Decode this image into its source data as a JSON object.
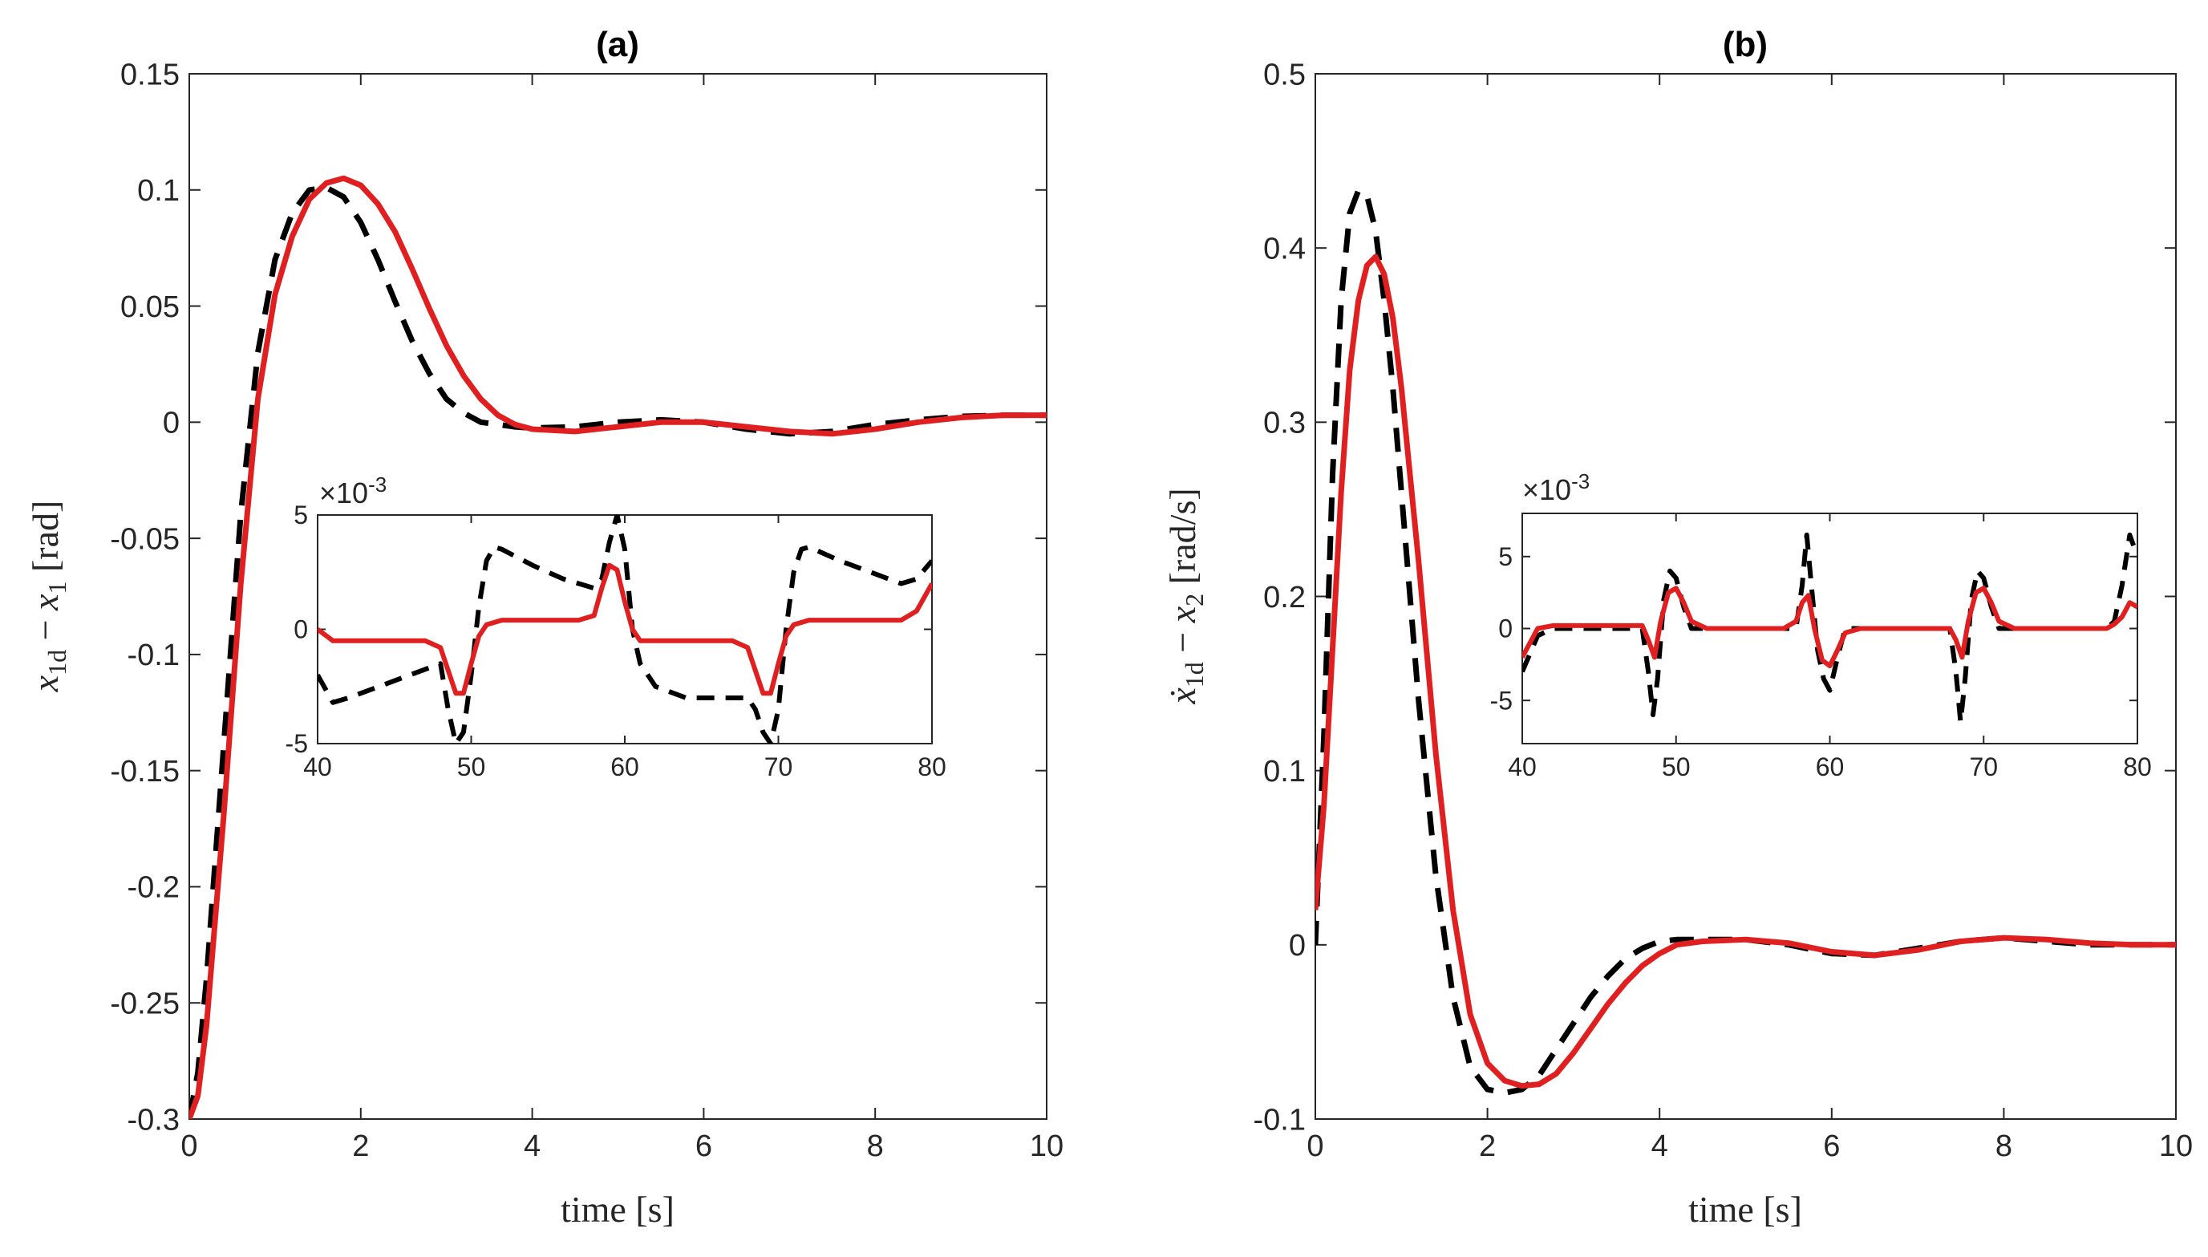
{
  "chart_data": [
    {
      "type": "line",
      "title": "(a)",
      "xlabel": "time [s]",
      "ylabel": "x_{1d} − x_1 [rad]",
      "ylabel_parts": {
        "var": "x",
        "sub1": "1d",
        "minus": " − ",
        "var2": "x",
        "sub2": "1",
        "unit": " [rad]"
      },
      "xlim": [
        0,
        10
      ],
      "ylim": [
        -0.3,
        0.15
      ],
      "xticks": [
        0,
        2,
        4,
        6,
        8,
        10
      ],
      "xtick_labels": [
        "0",
        "2",
        "4",
        "6",
        "8",
        "10"
      ],
      "yticks": [
        -0.3,
        -0.25,
        -0.2,
        -0.15,
        -0.1,
        -0.05,
        0,
        0.05,
        0.1,
        0.15
      ],
      "ytick_labels": [
        "-0.3",
        "-0.25",
        "-0.2",
        "-0.15",
        "-0.1",
        "-0.05",
        "0",
        "0.05",
        "0.1",
        "0.15"
      ],
      "grid": false,
      "series": [
        {
          "name": "dashed",
          "color": "#000000",
          "style": "dashed",
          "x": [
            0,
            0.1,
            0.2,
            0.4,
            0.6,
            0.8,
            1.0,
            1.2,
            1.4,
            1.6,
            1.8,
            2.0,
            2.2,
            2.4,
            2.6,
            2.8,
            3.0,
            3.2,
            3.4,
            3.6,
            3.8,
            4.0,
            4.5,
            5.0,
            5.5,
            6.0,
            6.5,
            7.0,
            7.5,
            8.0,
            8.5,
            9.0,
            9.5,
            10.0
          ],
          "y": [
            -0.3,
            -0.28,
            -0.24,
            -0.14,
            -0.04,
            0.03,
            0.07,
            0.09,
            0.1,
            0.101,
            0.097,
            0.086,
            0.07,
            0.052,
            0.035,
            0.021,
            0.01,
            0.004,
            0.0,
            -0.001,
            -0.002,
            -0.0025,
            -0.002,
            0.0,
            0.001,
            0.0,
            -0.003,
            -0.005,
            -0.004,
            -0.001,
            0.001,
            0.0025,
            0.003,
            0.003
          ]
        },
        {
          "name": "solid",
          "color": "#e02020",
          "style": "solid",
          "x": [
            0,
            0.1,
            0.2,
            0.4,
            0.6,
            0.8,
            1.0,
            1.2,
            1.4,
            1.6,
            1.8,
            2.0,
            2.2,
            2.4,
            2.6,
            2.8,
            3.0,
            3.2,
            3.4,
            3.6,
            3.8,
            4.0,
            4.5,
            5.0,
            5.5,
            6.0,
            6.5,
            7.0,
            7.5,
            8.0,
            8.5,
            9.0,
            9.5,
            10.0
          ],
          "y": [
            -0.3,
            -0.29,
            -0.26,
            -0.17,
            -0.07,
            0.01,
            0.055,
            0.08,
            0.096,
            0.103,
            0.105,
            0.102,
            0.094,
            0.082,
            0.066,
            0.049,
            0.033,
            0.02,
            0.01,
            0.003,
            -0.001,
            -0.003,
            -0.004,
            -0.002,
            0.0,
            0.0,
            -0.002,
            -0.004,
            -0.005,
            -0.003,
            0.0,
            0.002,
            0.003,
            0.003
          ]
        }
      ],
      "inset": {
        "xlim": [
          40,
          80
        ],
        "ylim": [
          -5,
          5
        ],
        "xticks": [
          40,
          50,
          60,
          70,
          80
        ],
        "xtick_labels": [
          "40",
          "50",
          "60",
          "70",
          "80"
        ],
        "yticks": [
          -5,
          0,
          5
        ],
        "ytick_labels": [
          "-5",
          "0",
          "5"
        ],
        "scale_label": "×10",
        "scale_exponent": "-3",
        "series": [
          {
            "name": "dashed",
            "color": "#000000",
            "style": "dashed",
            "x": [
              40,
              41,
              42,
              44,
              46,
              48,
              48.5,
              49,
              49.5,
              50,
              50.5,
              51,
              51.5,
              52,
              54,
              56,
              58,
              58.5,
              59,
              59.5,
              60,
              60.5,
              61,
              62,
              64,
              66,
              68,
              68.5,
              69,
              69.5,
              70,
              70.5,
              71,
              71.5,
              72,
              74,
              76,
              78,
              79,
              80
            ],
            "y": [
              -2,
              -3.2,
              -3.0,
              -2.5,
              -2.0,
              -1.5,
              -3.5,
              -5.0,
              -4.5,
              -2.0,
              1.0,
              3.0,
              3.6,
              3.5,
              2.8,
              2.2,
              1.8,
              2.2,
              3.8,
              5.0,
              3.5,
              0.0,
              -1.5,
              -2.5,
              -3.0,
              -3.0,
              -3.0,
              -3.5,
              -4.5,
              -5.0,
              -3.5,
              0.0,
              2.5,
              3.5,
              3.6,
              3.0,
              2.5,
              2.0,
              2.2,
              3.0
            ]
          },
          {
            "name": "solid",
            "color": "#e02020",
            "style": "solid",
            "x": [
              40,
              41,
              42,
              44,
              46,
              47,
              48,
              48.5,
              49,
              49.5,
              50,
              50.5,
              51,
              52,
              54,
              56,
              57,
              58,
              58.5,
              59,
              59.5,
              60,
              60.5,
              61,
              62,
              64,
              66,
              67,
              68,
              68.5,
              69,
              69.5,
              70,
              70.5,
              71,
              72,
              74,
              76,
              78,
              79,
              80
            ],
            "y": [
              0,
              -0.5,
              -0.5,
              -0.5,
              -0.5,
              -0.5,
              -0.8,
              -1.8,
              -2.8,
              -2.8,
              -1.5,
              -0.3,
              0.2,
              0.4,
              0.4,
              0.4,
              0.4,
              0.6,
              1.8,
              2.8,
              2.6,
              1.2,
              0.0,
              -0.5,
              -0.5,
              -0.5,
              -0.5,
              -0.5,
              -0.8,
              -1.8,
              -2.8,
              -2.8,
              -1.5,
              -0.3,
              0.2,
              0.4,
              0.4,
              0.4,
              0.4,
              0.8,
              2.0
            ]
          }
        ]
      }
    },
    {
      "type": "line",
      "title": "(b)",
      "xlabel": "time [s]",
      "ylabel": "ẋ_{1d} − x_2 [rad/s]",
      "ylabel_parts": {
        "var": "ẋ",
        "sub1": "1d",
        "minus": " − ",
        "var2": "x",
        "sub2": "2",
        "unit": " [rad/s]"
      },
      "xlim": [
        0,
        10
      ],
      "ylim": [
        -0.1,
        0.5
      ],
      "xticks": [
        0,
        2,
        4,
        6,
        8,
        10
      ],
      "xtick_labels": [
        "0",
        "2",
        "4",
        "6",
        "8",
        "10"
      ],
      "yticks": [
        -0.1,
        0,
        0.1,
        0.2,
        0.3,
        0.4,
        0.5
      ],
      "ytick_labels": [
        "-0.1",
        "0",
        "0.1",
        "0.2",
        "0.3",
        "0.4",
        "0.5"
      ],
      "grid": false,
      "series": [
        {
          "name": "dashed",
          "color": "#000000",
          "style": "dashed",
          "x": [
            0,
            0.1,
            0.2,
            0.3,
            0.4,
            0.5,
            0.6,
            0.7,
            0.8,
            0.9,
            1.0,
            1.2,
            1.4,
            1.6,
            1.8,
            2.0,
            2.2,
            2.4,
            2.6,
            2.8,
            3.0,
            3.2,
            3.4,
            3.6,
            3.8,
            4.0,
            4.2,
            4.5,
            5.0,
            5.5,
            6.0,
            6.5,
            7.0,
            7.5,
            8.0,
            8.5,
            9.0,
            9.5,
            10.0
          ],
          "y": [
            0.0,
            0.12,
            0.27,
            0.37,
            0.42,
            0.433,
            0.43,
            0.41,
            0.37,
            0.32,
            0.26,
            0.14,
            0.04,
            -0.03,
            -0.07,
            -0.083,
            -0.085,
            -0.083,
            -0.075,
            -0.06,
            -0.045,
            -0.03,
            -0.018,
            -0.008,
            -0.002,
            0.002,
            0.003,
            0.003,
            0.003,
            0.0,
            -0.005,
            -0.006,
            -0.002,
            0.002,
            0.004,
            0.002,
            0.0,
            0.0,
            0.0
          ]
        },
        {
          "name": "solid",
          "color": "#e02020",
          "style": "solid",
          "x": [
            0,
            0.1,
            0.2,
            0.3,
            0.4,
            0.5,
            0.6,
            0.7,
            0.8,
            0.9,
            1.0,
            1.1,
            1.2,
            1.4,
            1.6,
            1.8,
            2.0,
            2.2,
            2.4,
            2.6,
            2.8,
            3.0,
            3.2,
            3.4,
            3.6,
            3.8,
            4.0,
            4.2,
            4.5,
            5.0,
            5.5,
            6.0,
            6.5,
            7.0,
            7.5,
            8.0,
            8.5,
            9.0,
            9.5,
            10.0
          ],
          "y": [
            0.02,
            0.08,
            0.17,
            0.26,
            0.33,
            0.37,
            0.39,
            0.395,
            0.385,
            0.36,
            0.32,
            0.27,
            0.22,
            0.11,
            0.02,
            -0.04,
            -0.068,
            -0.078,
            -0.081,
            -0.08,
            -0.074,
            -0.062,
            -0.048,
            -0.034,
            -0.022,
            -0.012,
            -0.005,
            0.0,
            0.002,
            0.003,
            0.001,
            -0.004,
            -0.006,
            -0.003,
            0.002,
            0.004,
            0.003,
            0.001,
            0.0,
            0.0
          ]
        }
      ],
      "inset": {
        "xlim": [
          40,
          80
        ],
        "ylim": [
          -8,
          8
        ],
        "xticks": [
          40,
          50,
          60,
          70,
          80
        ],
        "xtick_labels": [
          "40",
          "50",
          "60",
          "70",
          "80"
        ],
        "yticks": [
          -5,
          0,
          5
        ],
        "ytick_labels": [
          "-5",
          "0",
          "5"
        ],
        "scale_label": "×10",
        "scale_exponent": "-3",
        "series": [
          {
            "name": "dashed",
            "color": "#000000",
            "style": "dashed",
            "x": [
              40,
              41,
              42,
              44,
              46,
              47,
              47.8,
              48.2,
              48.5,
              48.8,
              49.2,
              49.6,
              50,
              50.5,
              51,
              52,
              54,
              56,
              57,
              57.8,
              58.2,
              58.5,
              58.8,
              59.2,
              59.6,
              60,
              60.5,
              61,
              62,
              64,
              66,
              67,
              67.8,
              68.2,
              68.5,
              68.8,
              69.2,
              69.6,
              70,
              70.5,
              71,
              72,
              74,
              76,
              78,
              78.5,
              79,
              79.5,
              80
            ],
            "y": [
              -3,
              -0.5,
              0,
              0,
              0,
              0,
              0,
              -3,
              -6,
              -3.5,
              2,
              4,
              3.5,
              1.5,
              0,
              0,
              0,
              0,
              0,
              0,
              3,
              6.5,
              3,
              -1.5,
              -3.5,
              -4.3,
              -2,
              0,
              0,
              0,
              0,
              0,
              0,
              -3,
              -6.5,
              -3.5,
              2,
              4,
              3.5,
              1.5,
              0,
              0,
              0,
              0,
              0,
              0.5,
              3,
              6.5,
              5
            ]
          },
          {
            "name": "solid",
            "color": "#e02020",
            "style": "solid",
            "x": [
              40,
              41,
              42,
              44,
              46,
              47,
              47.8,
              48.2,
              48.6,
              49,
              49.5,
              50,
              50.5,
              51,
              52,
              54,
              56,
              57,
              57.8,
              58.2,
              58.6,
              59,
              59.5,
              60,
              60.5,
              61,
              62,
              64,
              66,
              67,
              67.8,
              68.2,
              68.6,
              69,
              69.5,
              70,
              70.5,
              71,
              72,
              74,
              76,
              78,
              78.5,
              79,
              79.5,
              80
            ],
            "y": [
              -2,
              0,
              0.2,
              0.2,
              0.2,
              0.2,
              0.2,
              -0.8,
              -2.0,
              0.5,
              2.5,
              2.8,
              1.8,
              0.5,
              0,
              0,
              0,
              0,
              0.5,
              1.8,
              2.3,
              0.0,
              -2.2,
              -2.6,
              -1.5,
              -0.3,
              0,
              0,
              0,
              0,
              0,
              -0.8,
              -2.0,
              0.5,
              2.5,
              2.8,
              1.8,
              0.5,
              0,
              0,
              0,
              0,
              0.3,
              0.8,
              1.8,
              1.5
            ]
          }
        ]
      }
    }
  ]
}
